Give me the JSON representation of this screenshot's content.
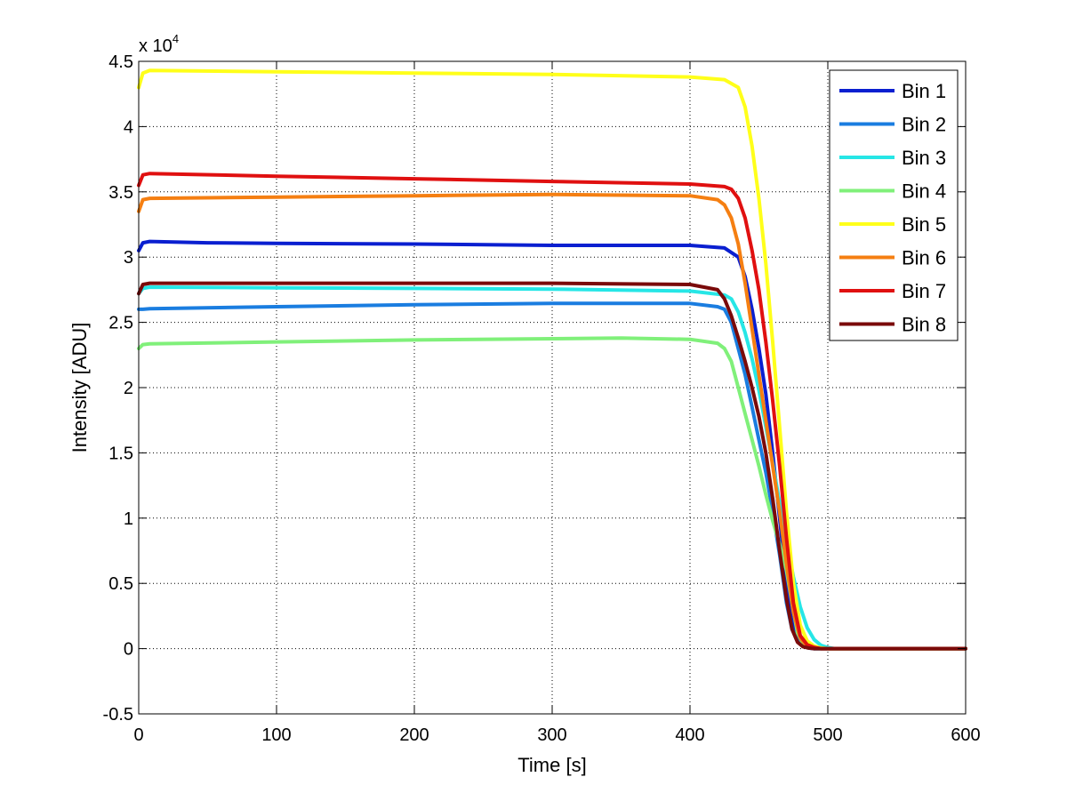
{
  "chart_data": {
    "type": "line",
    "title": "",
    "xlabel": "Time [s]",
    "ylabel": "Intensity [ADU]",
    "y_scale_label": "x 10",
    "y_scale_exponent": "4",
    "xlim": [
      0,
      600
    ],
    "ylim": [
      -0.5,
      4.5
    ],
    "xticks": [
      0,
      100,
      200,
      300,
      400,
      500,
      600
    ],
    "xtick_labels": [
      "0",
      "100",
      "200",
      "300",
      "400",
      "500",
      "600"
    ],
    "yticks": [
      -0.5,
      0,
      0.5,
      1,
      1.5,
      2,
      2.5,
      3,
      3.5,
      4,
      4.5
    ],
    "ytick_labels": [
      "-0.5",
      "0",
      "0.5",
      "1",
      "1.5",
      "2",
      "2.5",
      "3",
      "3.5",
      "4",
      "4.5"
    ],
    "grid": true,
    "legend_position": "top-right",
    "series": [
      {
        "name": "Bin 1",
        "color": "#0a1fd0",
        "x": [
          0,
          3,
          8,
          50,
          100,
          200,
          300,
          400,
          425,
          435,
          440,
          445,
          450,
          455,
          460,
          465,
          468,
          472,
          476,
          480,
          485,
          490,
          495,
          500,
          600
        ],
        "y": [
          3.05,
          3.11,
          3.12,
          3.11,
          3.105,
          3.1,
          3.09,
          3.09,
          3.07,
          3.0,
          2.85,
          2.6,
          2.3,
          1.95,
          1.5,
          1.0,
          0.7,
          0.35,
          0.12,
          0.04,
          0.01,
          0.0,
          0.0,
          0.0,
          0.0
        ]
      },
      {
        "name": "Bin 2",
        "color": "#1a7de0",
        "x": [
          0,
          3,
          8,
          100,
          200,
          300,
          400,
          420,
          425,
          430,
          435,
          440,
          445,
          450,
          455,
          460,
          465,
          470,
          474,
          478,
          482,
          486,
          490,
          495,
          500,
          600
        ],
        "y": [
          2.6,
          2.6,
          2.605,
          2.62,
          2.635,
          2.645,
          2.645,
          2.62,
          2.6,
          2.5,
          2.3,
          2.1,
          1.85,
          1.6,
          1.35,
          1.05,
          0.72,
          0.35,
          0.15,
          0.06,
          0.02,
          0.005,
          0.0,
          0.0,
          0.0,
          0.0
        ]
      },
      {
        "name": "Bin 3",
        "color": "#26e6e6",
        "x": [
          0,
          3,
          8,
          100,
          200,
          300,
          400,
          425,
          430,
          435,
          440,
          445,
          450,
          455,
          460,
          465,
          470,
          475,
          480,
          485,
          490,
          495,
          500,
          505,
          600
        ],
        "y": [
          2.72,
          2.76,
          2.77,
          2.765,
          2.76,
          2.755,
          2.74,
          2.71,
          2.68,
          2.58,
          2.42,
          2.22,
          1.98,
          1.7,
          1.42,
          1.12,
          0.82,
          0.55,
          0.32,
          0.16,
          0.07,
          0.025,
          0.008,
          0.0,
          0.0
        ]
      },
      {
        "name": "Bin 4",
        "color": "#80f07a",
        "x": [
          0,
          3,
          8,
          100,
          200,
          300,
          350,
          400,
          420,
          425,
          430,
          435,
          440,
          445,
          450,
          455,
          460,
          465,
          470,
          474,
          478,
          482,
          486,
          490,
          495,
          500,
          600
        ],
        "y": [
          2.3,
          2.33,
          2.335,
          2.35,
          2.365,
          2.375,
          2.38,
          2.37,
          2.34,
          2.3,
          2.2,
          2.0,
          1.8,
          1.6,
          1.4,
          1.18,
          0.98,
          0.8,
          0.6,
          0.35,
          0.12,
          0.04,
          0.01,
          0.0,
          0.0,
          0.0,
          0.0
        ]
      },
      {
        "name": "Bin 5",
        "color": "#ffff1a",
        "x": [
          0,
          3,
          8,
          100,
          200,
          300,
          400,
          425,
          435,
          440,
          445,
          450,
          455,
          460,
          465,
          470,
          475,
          480,
          485,
          490,
          495,
          500,
          505,
          600
        ],
        "y": [
          4.3,
          4.41,
          4.43,
          4.42,
          4.41,
          4.4,
          4.38,
          4.36,
          4.3,
          4.15,
          3.85,
          3.45,
          2.95,
          2.35,
          1.7,
          1.05,
          0.5,
          0.18,
          0.06,
          0.02,
          0.005,
          0.0,
          0.0,
          0.0
        ]
      },
      {
        "name": "Bin 6",
        "color": "#f57f12",
        "x": [
          0,
          3,
          8,
          100,
          200,
          300,
          400,
          420,
          425,
          430,
          435,
          440,
          445,
          450,
          455,
          460,
          465,
          470,
          475,
          480,
          485,
          490,
          495,
          500,
          600
        ],
        "y": [
          3.35,
          3.44,
          3.45,
          3.46,
          3.47,
          3.48,
          3.47,
          3.44,
          3.4,
          3.3,
          3.1,
          2.8,
          2.45,
          2.1,
          1.75,
          1.4,
          1.05,
          0.65,
          0.28,
          0.08,
          0.02,
          0.005,
          0.0,
          0.0,
          0.0
        ]
      },
      {
        "name": "Bin 7",
        "color": "#e01010",
        "x": [
          0,
          3,
          8,
          100,
          200,
          300,
          400,
          425,
          430,
          435,
          440,
          445,
          450,
          455,
          460,
          465,
          470,
          475,
          480,
          485,
          490,
          495,
          500,
          600
        ],
        "y": [
          3.55,
          3.63,
          3.64,
          3.62,
          3.6,
          3.58,
          3.56,
          3.54,
          3.52,
          3.45,
          3.3,
          3.05,
          2.75,
          2.35,
          1.9,
          1.4,
          0.85,
          0.35,
          0.1,
          0.03,
          0.01,
          0.0,
          0.0,
          0.0
        ]
      },
      {
        "name": "Bin 8",
        "color": "#7a0a0a",
        "x": [
          0,
          3,
          8,
          100,
          200,
          300,
          400,
          420,
          425,
          430,
          435,
          440,
          445,
          450,
          455,
          460,
          465,
          470,
          474,
          478,
          482,
          486,
          490,
          495,
          500,
          600
        ],
        "y": [
          2.72,
          2.79,
          2.8,
          2.8,
          2.8,
          2.8,
          2.79,
          2.75,
          2.68,
          2.55,
          2.38,
          2.2,
          2.0,
          1.78,
          1.5,
          1.15,
          0.75,
          0.38,
          0.15,
          0.05,
          0.015,
          0.005,
          0.0,
          0.0,
          0.0,
          0.0
        ]
      }
    ]
  }
}
